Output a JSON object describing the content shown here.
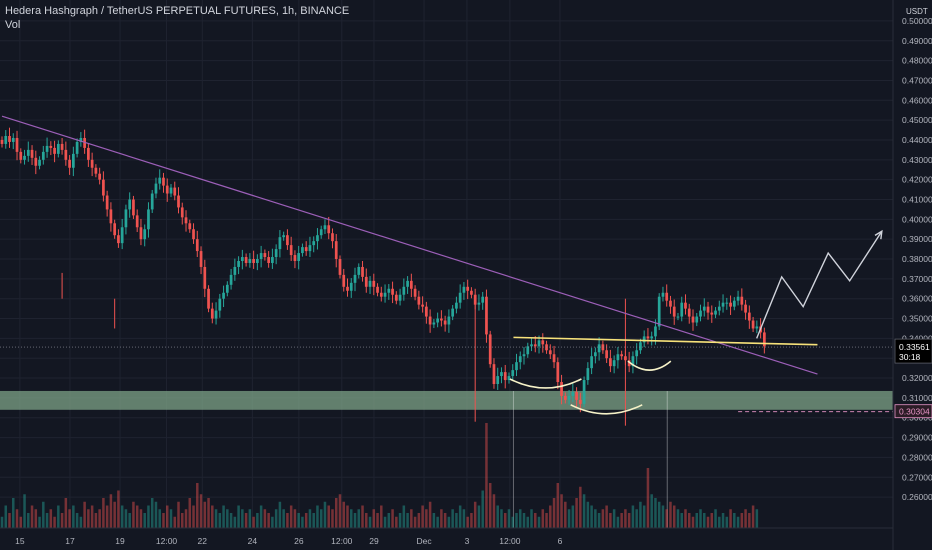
{
  "header": {
    "title": "Hedera Hashgraph / TetherUS PERPETUAL FUTURES, 1h, BINANCE",
    "vol_label": "Vol"
  },
  "price_axis": {
    "currency": "USDT",
    "ticks": [
      "0.50000",
      "0.49000",
      "0.48000",
      "0.47000",
      "0.46000",
      "0.45000",
      "0.44000",
      "0.43000",
      "0.42000",
      "0.41000",
      "0.40000",
      "0.39000",
      "0.38000",
      "0.37000",
      "0.36000",
      "0.35000",
      "0.34000",
      "0.33000",
      "0.32000",
      "0.31000",
      "0.30000",
      "0.29000",
      "0.28000",
      "0.27000",
      "0.26000"
    ],
    "tick_values": [
      0.5,
      0.49,
      0.48,
      0.47,
      0.46,
      0.45,
      0.44,
      0.43,
      0.42,
      0.41,
      0.4,
      0.39,
      0.38,
      0.37,
      0.36,
      0.35,
      0.34,
      0.33,
      0.32,
      0.31,
      0.3,
      0.29,
      0.28,
      0.27,
      0.26
    ],
    "range": [
      0.2535,
      0.5045
    ]
  },
  "time_axis": {
    "labels": [
      "15",
      "17",
      "19",
      "12:00",
      "22",
      "24",
      "26",
      "12:00",
      "29",
      "Dec",
      "3",
      "12:00",
      "6"
    ]
  },
  "price_badges": {
    "last_price": "0.33561",
    "countdown": "30:18",
    "last_price_value": 0.33561,
    "alert_price": "0.30304",
    "alert_price_value": 0.30304
  },
  "colors": {
    "background": "#131722",
    "up": "#26a69a",
    "down": "#ef5350",
    "trendline": "#9c5fb8",
    "neckline": "#f7e27a",
    "zone": "#81a88a",
    "projection": "#d1d4dc",
    "text": "#d1d4dc",
    "axis_text": "#b2b5be",
    "grid": "#1f2330"
  },
  "chart_data": {
    "type": "candlestick",
    "series_close": [
      0.438,
      0.442,
      0.439,
      0.441,
      0.434,
      0.43,
      0.432,
      0.435,
      0.431,
      0.427,
      0.43,
      0.434,
      0.437,
      0.436,
      0.433,
      0.438,
      0.435,
      0.43,
      0.426,
      0.433,
      0.439,
      0.441,
      0.436,
      0.43,
      0.426,
      0.423,
      0.42,
      0.412,
      0.405,
      0.398,
      0.392,
      0.388,
      0.396,
      0.405,
      0.41,
      0.402,
      0.396,
      0.39,
      0.395,
      0.405,
      0.413,
      0.418,
      0.421,
      0.417,
      0.413,
      0.416,
      0.412,
      0.406,
      0.401,
      0.398,
      0.395,
      0.39,
      0.384,
      0.376,
      0.365,
      0.355,
      0.35,
      0.354,
      0.36,
      0.363,
      0.367,
      0.372,
      0.376,
      0.379,
      0.381,
      0.378,
      0.38,
      0.378,
      0.38,
      0.383,
      0.381,
      0.378,
      0.381,
      0.385,
      0.391,
      0.392,
      0.387,
      0.382,
      0.379,
      0.383,
      0.386,
      0.384,
      0.387,
      0.389,
      0.392,
      0.395,
      0.397,
      0.393,
      0.389,
      0.38,
      0.372,
      0.366,
      0.364,
      0.368,
      0.372,
      0.376,
      0.371,
      0.366,
      0.369,
      0.366,
      0.363,
      0.361,
      0.363,
      0.365,
      0.362,
      0.359,
      0.362,
      0.366,
      0.369,
      0.365,
      0.361,
      0.357,
      0.356,
      0.351,
      0.347,
      0.348,
      0.35,
      0.349,
      0.347,
      0.351,
      0.355,
      0.358,
      0.363,
      0.366,
      0.364,
      0.362,
      0.357,
      0.358,
      0.361,
      0.342,
      0.327,
      0.317,
      0.321,
      0.323,
      0.319,
      0.321,
      0.324,
      0.328,
      0.331,
      0.332,
      0.336,
      0.337,
      0.336,
      0.339,
      0.337,
      0.334,
      0.332,
      0.328,
      0.318,
      0.311,
      0.309,
      0.311,
      0.313,
      0.309,
      0.307,
      0.319,
      0.325,
      0.331,
      0.333,
      0.337,
      0.334,
      0.33,
      0.326,
      0.329,
      0.332,
      0.331,
      0.329,
      0.326,
      0.331,
      0.334,
      0.338,
      0.341,
      0.34,
      0.341,
      0.346,
      0.361,
      0.363,
      0.359,
      0.356,
      0.351,
      0.351,
      0.358,
      0.355,
      0.351,
      0.348,
      0.351,
      0.354,
      0.356,
      0.353,
      0.352,
      0.354,
      0.356,
      0.358,
      0.358,
      0.356,
      0.359,
      0.361,
      0.357,
      0.353,
      0.349,
      0.345,
      0.346,
      0.343,
      0.336
    ],
    "x_range_bars": [
      0,
      248
    ],
    "last_data_bar": 204,
    "volume": [
      0.3,
      0.6,
      0.4,
      0.8,
      0.5,
      0.3,
      0.9,
      0.4,
      0.6,
      0.5,
      0.3,
      0.7,
      0.4,
      0.5,
      0.3,
      0.6,
      0.4,
      0.8,
      0.5,
      0.6,
      0.4,
      0.3,
      0.7,
      0.5,
      0.6,
      0.4,
      0.5,
      0.8,
      0.6,
      0.9,
      0.7,
      1.0,
      0.6,
      0.5,
      0.4,
      0.7,
      0.6,
      0.5,
      0.4,
      0.6,
      0.8,
      0.7,
      0.5,
      0.4,
      0.6,
      0.5,
      0.3,
      0.7,
      0.4,
      0.5,
      0.8,
      0.6,
      1.2,
      0.9,
      0.7,
      0.8,
      0.6,
      0.5,
      0.4,
      0.6,
      0.5,
      0.4,
      0.3,
      0.6,
      0.5,
      0.4,
      0.5,
      0.3,
      0.4,
      0.6,
      0.5,
      0.4,
      0.3,
      0.5,
      0.7,
      0.5,
      0.4,
      0.6,
      0.5,
      0.4,
      0.3,
      0.4,
      0.5,
      0.4,
      0.6,
      0.5,
      0.7,
      0.6,
      0.5,
      0.8,
      0.9,
      0.7,
      0.6,
      0.5,
      0.4,
      0.5,
      0.6,
      0.4,
      0.3,
      0.5,
      0.4,
      0.6,
      0.3,
      0.4,
      0.5,
      0.3,
      0.4,
      0.6,
      0.4,
      0.5,
      0.3,
      0.4,
      0.6,
      0.5,
      0.7,
      0.4,
      0.3,
      0.5,
      0.4,
      0.3,
      0.5,
      0.4,
      0.6,
      0.5,
      0.3,
      0.4,
      0.7,
      0.6,
      1.0,
      2.8,
      1.2,
      0.9,
      0.6,
      0.5,
      0.4,
      0.5,
      0.3,
      0.4,
      0.5,
      0.4,
      0.3,
      0.5,
      0.4,
      0.3,
      0.5,
      0.4,
      0.6,
      0.8,
      1.2,
      0.9,
      0.7,
      0.5,
      0.6,
      0.8,
      1.1,
      0.9,
      0.7,
      0.6,
      0.5,
      0.4,
      0.5,
      0.6,
      0.4,
      0.5,
      0.3,
      0.4,
      0.5,
      0.4,
      0.6,
      0.5,
      0.7,
      0.6,
      1.6,
      0.9,
      0.8,
      0.7,
      0.6,
      0.5,
      0.7,
      0.6,
      0.5,
      0.4,
      0.5,
      0.4,
      0.3,
      0.4,
      0.5,
      0.4,
      0.3,
      0.4,
      0.5,
      0.3,
      0.4,
      0.3,
      0.5,
      0.4,
      0.3,
      0.4,
      0.5,
      0.4,
      0.6,
      0.5
    ],
    "trendline": {
      "from": [
        0,
        0.452
      ],
      "to": [
        228,
        0.322
      ]
    },
    "neckline": {
      "from": [
        143,
        0.3405
      ],
      "to": [
        228,
        0.3368
      ]
    },
    "support_zone": [
      0.304,
      0.3135
    ],
    "projection": [
      [
        211,
        0.34
      ],
      [
        218,
        0.371
      ],
      [
        224,
        0.356
      ],
      [
        231,
        0.383
      ],
      [
        237,
        0.369
      ],
      [
        246,
        0.394
      ]
    ],
    "pattern_arcs": [
      {
        "center": [
          152,
          0.3155
        ],
        "width": 10
      },
      {
        "center": [
          169,
          0.3025
        ],
        "width": 10
      },
      {
        "center": [
          181,
          0.3245
        ],
        "width": 6
      }
    ],
    "vertical_lines_bars": [
      143,
      186
    ]
  }
}
